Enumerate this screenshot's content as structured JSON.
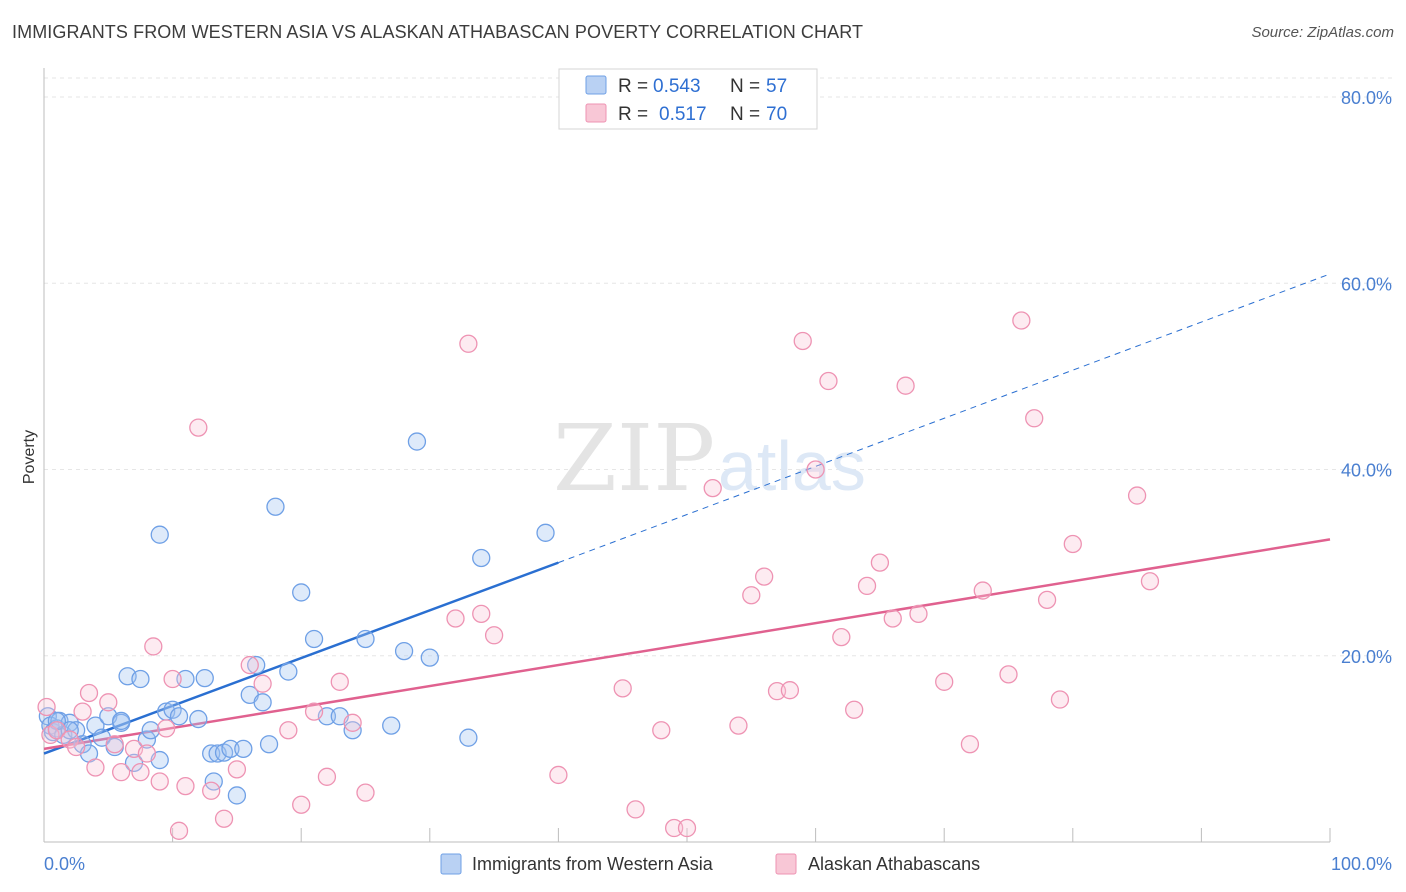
{
  "title": "IMMIGRANTS FROM WESTERN ASIA VS ALASKAN ATHABASCAN POVERTY CORRELATION CHART",
  "source": "Source: ZipAtlas.com",
  "watermark": {
    "zip": "ZIP",
    "atlas": "atlas"
  },
  "chart_data": {
    "type": "scatter",
    "ylabel": "Poverty",
    "xlabel": "",
    "xlim": [
      0,
      100
    ],
    "ylim": [
      0,
      85
    ],
    "y_ticks": [
      {
        "value": 20,
        "label": "20.0%"
      },
      {
        "value": 40,
        "label": "40.0%"
      },
      {
        "value": 60,
        "label": "60.0%"
      },
      {
        "value": 80,
        "label": "80.0%"
      }
    ],
    "x_ticks": [
      {
        "value": 0,
        "label": "0.0%"
      },
      {
        "value": 100,
        "label": "100.0%"
      }
    ],
    "legend": [
      {
        "r_label": "R =",
        "r_value": "0.543",
        "n_label": "N =",
        "n_value": "57",
        "color": "#6fa0e6",
        "fill": "#b9d1f3"
      },
      {
        "r_label": "R =",
        "r_value": "0.517",
        "n_label": "N =",
        "n_value": "70",
        "color": "#ee93b3",
        "fill": "#f8c7d6"
      }
    ],
    "series": [
      {
        "name": "Immigrants from Western Asia",
        "stroke": "#6fa0e6",
        "fill": "rgba(160,195,240,0.35)",
        "trend_color": "#2a6fd1",
        "trend": {
          "x0": 0,
          "y0": 9.5,
          "x1": 40,
          "y1": 30,
          "dash_to_x": 100,
          "dash_to_y": 61
        },
        "points": [
          [
            0.3,
            13.5
          ],
          [
            0.5,
            12.5
          ],
          [
            0.7,
            11.8
          ],
          [
            1.0,
            12.2
          ],
          [
            1.2,
            13.0
          ],
          [
            1.5,
            11.5
          ],
          [
            2,
            12.8
          ],
          [
            2.5,
            12
          ],
          [
            3,
            10.5
          ],
          [
            3.5,
            9.5
          ],
          [
            4,
            12.5
          ],
          [
            4.5,
            11.2
          ],
          [
            5,
            13.5
          ],
          [
            5.5,
            10.2
          ],
          [
            6,
            12.8
          ],
          [
            6.5,
            17.8
          ],
          [
            7,
            8.5
          ],
          [
            7.5,
            17.5
          ],
          [
            8,
            11
          ],
          [
            8.3,
            12
          ],
          [
            9,
            8.8
          ],
          [
            9.5,
            14
          ],
          [
            10,
            14.2
          ],
          [
            10.5,
            13.5
          ],
          [
            11,
            17.5
          ],
          [
            12,
            13.2
          ],
          [
            12.5,
            17.6
          ],
          [
            13,
            9.5
          ],
          [
            13.2,
            6.5
          ],
          [
            13.5,
            9.5
          ],
          [
            14,
            9.6
          ],
          [
            14.5,
            10
          ],
          [
            15,
            5
          ],
          [
            15.5,
            10
          ],
          [
            16,
            15.8
          ],
          [
            16.5,
            19
          ],
          [
            17,
            15
          ],
          [
            17.5,
            10.5
          ],
          [
            18,
            36
          ],
          [
            19,
            18.3
          ],
          [
            20,
            26.8
          ],
          [
            21,
            21.8
          ],
          [
            22,
            13.5
          ],
          [
            23,
            13.5
          ],
          [
            24,
            12
          ],
          [
            25,
            21.8
          ],
          [
            27,
            12.5
          ],
          [
            28,
            20.5
          ],
          [
            29,
            43
          ],
          [
            30,
            19.8
          ],
          [
            33,
            11.2
          ],
          [
            34,
            30.5
          ],
          [
            39,
            33.2
          ],
          [
            9,
            33
          ],
          [
            2,
            12
          ],
          [
            1,
            13
          ],
          [
            6,
            13
          ]
        ]
      },
      {
        "name": "Alaskan Athabascans",
        "stroke": "#ee93b3",
        "fill": "rgba(248,199,214,0.35)",
        "trend_color": "#e0618f",
        "trend": {
          "x0": 0,
          "y0": 10,
          "x1": 100,
          "y1": 32.5
        },
        "points": [
          [
            0.2,
            14.5
          ],
          [
            0.5,
            11.5
          ],
          [
            1,
            12
          ],
          [
            2,
            11
          ],
          [
            2.5,
            10.2
          ],
          [
            3,
            14
          ],
          [
            3.5,
            16
          ],
          [
            4,
            8
          ],
          [
            5,
            15
          ],
          [
            5.5,
            10.5
          ],
          [
            6,
            7.5
          ],
          [
            7,
            10
          ],
          [
            7.5,
            7.5
          ],
          [
            8,
            9.5
          ],
          [
            8.5,
            21
          ],
          [
            9,
            6.5
          ],
          [
            9.5,
            12.2
          ],
          [
            10,
            17.5
          ],
          [
            10.5,
            1.2
          ],
          [
            11,
            6
          ],
          [
            12,
            44.5
          ],
          [
            13,
            5.5
          ],
          [
            14,
            2.5
          ],
          [
            15,
            7.8
          ],
          [
            16,
            19
          ],
          [
            17,
            17
          ],
          [
            19,
            12
          ],
          [
            20,
            4
          ],
          [
            21,
            14
          ],
          [
            22,
            7
          ],
          [
            23,
            17.2
          ],
          [
            24,
            12.8
          ],
          [
            25,
            5.3
          ],
          [
            32,
            24
          ],
          [
            33,
            53.5
          ],
          [
            34,
            24.5
          ],
          [
            35,
            22.2
          ],
          [
            40,
            7.2
          ],
          [
            45,
            16.5
          ],
          [
            46,
            3.5
          ],
          [
            48,
            12
          ],
          [
            49,
            1.5
          ],
          [
            50,
            1.5
          ],
          [
            52,
            38
          ],
          [
            54,
            12.5
          ],
          [
            55,
            26.5
          ],
          [
            56,
            28.5
          ],
          [
            57,
            16.2
          ],
          [
            58,
            16.3
          ],
          [
            59,
            53.8
          ],
          [
            60,
            40
          ],
          [
            61,
            49.5
          ],
          [
            62,
            22
          ],
          [
            63,
            14.2
          ],
          [
            64,
            27.5
          ],
          [
            65,
            30
          ],
          [
            66,
            24
          ],
          [
            67,
            49
          ],
          [
            68,
            24.5
          ],
          [
            70,
            17.2
          ],
          [
            72,
            10.5
          ],
          [
            73,
            27
          ],
          [
            75,
            18
          ],
          [
            76,
            56
          ],
          [
            77,
            45.5
          ],
          [
            78,
            26
          ],
          [
            79,
            15.3
          ],
          [
            80,
            32
          ],
          [
            85,
            37.2
          ],
          [
            86,
            28
          ]
        ]
      }
    ]
  }
}
